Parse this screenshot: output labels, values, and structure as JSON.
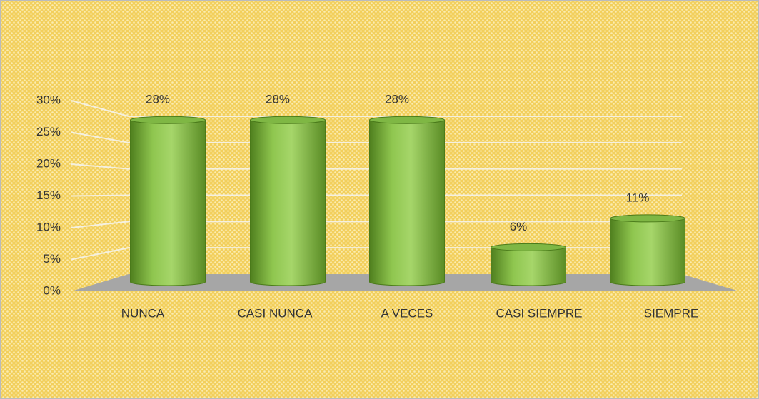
{
  "chart_data": {
    "type": "bar",
    "categories": [
      "NUNCA",
      "CASI NUNCA",
      "A VECES",
      "CASI SIEMPRE",
      "SIEMPRE"
    ],
    "values": [
      28,
      28,
      28,
      6,
      11
    ],
    "value_labels": [
      "28%",
      "28%",
      "28%",
      "6%",
      "11%"
    ],
    "color": "#7cb342",
    "ylim": [
      0,
      30
    ],
    "yticks": [
      {
        "value": 0,
        "label": "0%"
      },
      {
        "value": 5,
        "label": "5%"
      },
      {
        "value": 10,
        "label": "10%"
      },
      {
        "value": 15,
        "label": "15%"
      },
      {
        "value": 20,
        "label": "20%"
      },
      {
        "value": 25,
        "label": "25%"
      },
      {
        "value": 30,
        "label": "30%"
      }
    ],
    "grid": true
  }
}
